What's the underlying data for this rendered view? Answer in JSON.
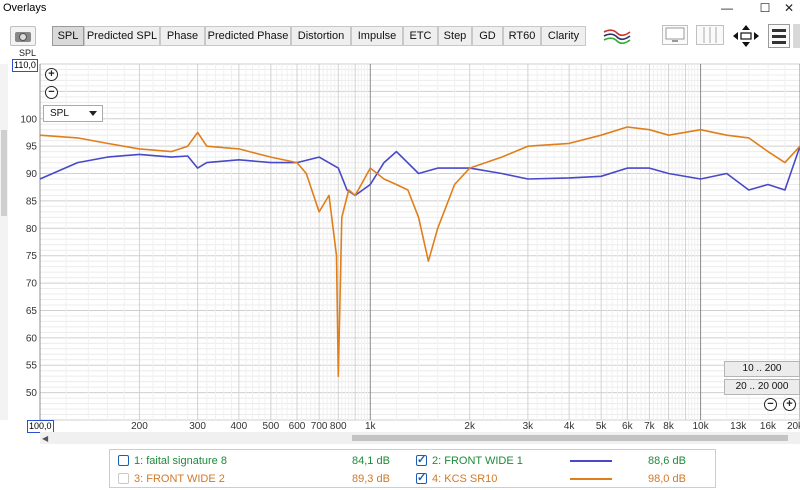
{
  "window": {
    "title": "Overlays",
    "minimize": "—",
    "maximize": "☐",
    "close": "✕"
  },
  "toolbar": {
    "tabs": [
      {
        "label": "SPL",
        "active": true
      },
      {
        "label": "Predicted SPL",
        "active": false
      },
      {
        "label": "Phase",
        "active": false
      },
      {
        "label": "Predicted Phase",
        "active": false
      },
      {
        "label": "Distortion",
        "active": false
      },
      {
        "label": "Impulse",
        "active": false
      },
      {
        "label": "ETC",
        "active": false
      },
      {
        "label": "Step",
        "active": false
      },
      {
        "label": "GD",
        "active": false
      },
      {
        "label": "RT60",
        "active": false
      },
      {
        "label": "Clarity",
        "active": false
      }
    ],
    "camera_label": "SPL"
  },
  "graph": {
    "y_top_label": "110,0",
    "x_left_label": "100,0",
    "y_ticks": [
      "100",
      "95",
      "90",
      "85",
      "80",
      "75",
      "70",
      "65",
      "60",
      "55",
      "50"
    ],
    "x_ticks": [
      "200",
      "300",
      "400",
      "500",
      "600",
      "700",
      "800",
      "1k",
      "2k",
      "3k",
      "4k",
      "5k",
      "6k",
      "7k",
      "8k",
      "10k",
      "13k",
      "16k",
      "20k"
    ],
    "measure_select": "SPL",
    "range_buttons": [
      "10 .. 200",
      "20 .. 20 000"
    ],
    "zoom_in": "+",
    "zoom_out": "−"
  },
  "chart_data": {
    "type": "line",
    "xscale": "log",
    "xlim": [
      100,
      20000
    ],
    "ylim": [
      45,
      110
    ],
    "grid": true,
    "series": [
      {
        "name": "FRONT WIDE 1",
        "color": "#4848c8",
        "x": [
          100,
          130,
          160,
          200,
          250,
          280,
          300,
          320,
          400,
          500,
          600,
          700,
          800,
          850,
          900,
          1000,
          1100,
          1200,
          1400,
          1600,
          2000,
          2500,
          3000,
          4000,
          5000,
          6000,
          7000,
          8000,
          10000,
          12000,
          14000,
          16000,
          18000,
          20000
        ],
        "y": [
          89,
          92,
          93,
          93.5,
          93,
          93.2,
          91,
          92,
          92.5,
          92,
          92,
          93,
          91,
          87,
          86,
          88,
          92,
          94,
          90,
          91,
          91,
          90,
          89,
          89.2,
          89.5,
          91,
          91,
          90,
          89,
          90,
          87,
          88,
          87,
          95
        ]
      },
      {
        "name": "KCS SR10",
        "color": "#e07f1a",
        "x": [
          100,
          130,
          160,
          200,
          250,
          280,
          300,
          320,
          400,
          500,
          600,
          640,
          700,
          750,
          790,
          800,
          820,
          860,
          900,
          1000,
          1100,
          1200,
          1300,
          1400,
          1500,
          1600,
          1800,
          2000,
          2500,
          3000,
          4000,
          5000,
          6000,
          7000,
          8000,
          10000,
          12000,
          14000,
          16000,
          18000,
          20000
        ],
        "y": [
          97,
          96.5,
          95.5,
          94.5,
          94,
          95,
          97.5,
          95,
          94.5,
          93,
          92,
          90,
          83,
          86,
          75,
          53,
          82,
          87,
          86,
          91,
          89,
          88,
          87,
          82,
          74,
          80,
          88,
          91,
          93,
          95,
          95.5,
          97,
          98.5,
          98,
          97,
          98,
          97,
          96.5,
          94,
          92,
          95
        ]
      }
    ]
  },
  "legend": {
    "rows": [
      {
        "left_checked": false,
        "left_name": "1: faital signature 8",
        "left_color": "#1f8a3a",
        "left_value": "84,1 dB",
        "right_checked": true,
        "right_name": "2: FRONT WIDE 1",
        "right_color": "#1f8a3a",
        "right_swatch": "#4848c8",
        "right_value": "88,6 dB"
      },
      {
        "left_checked": false,
        "left_name": "3: FRONT WIDE 2",
        "left_color": "#d07a2a",
        "left_value": "89,3 dB",
        "right_checked": true,
        "right_name": "4: KCS SR10",
        "right_color": "#d07a2a",
        "right_swatch": "#e07f1a",
        "right_value": "98,0 dB"
      }
    ]
  }
}
